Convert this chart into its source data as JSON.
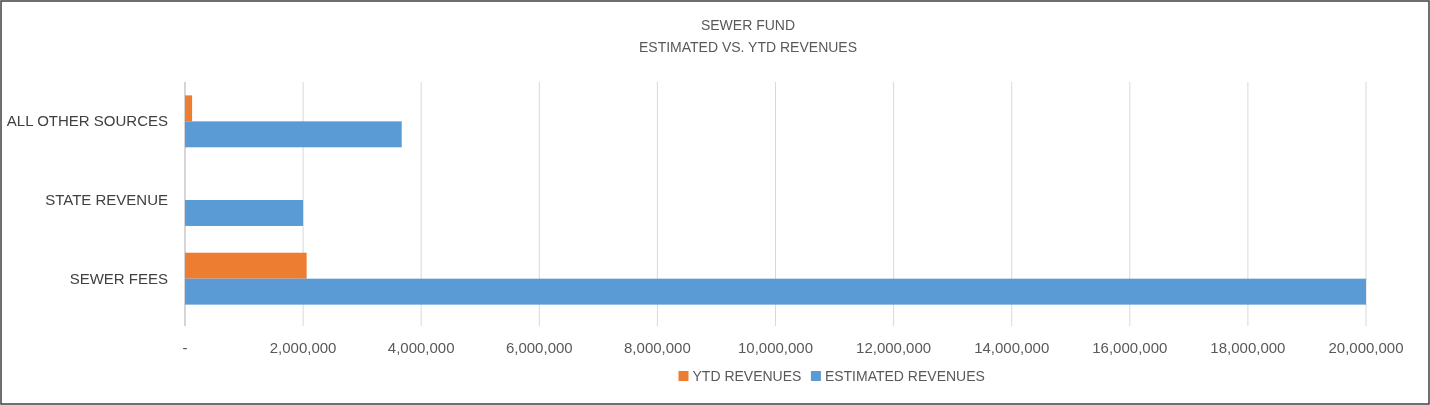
{
  "chart_data": {
    "type": "bar",
    "orientation": "horizontal",
    "title": "SEWER FUND",
    "subtitle": "ESTIMATED VS. YTD REVENUES",
    "categories": [
      "ALL OTHER SOURCES",
      "STATE REVENUE",
      "SEWER FEES"
    ],
    "series": [
      {
        "name": "YTD REVENUES",
        "color": "#ed7d31",
        "values": [
          120000,
          null,
          2060000
        ]
      },
      {
        "name": "ESTIMATED REVENUES",
        "color": "#5b9bd5",
        "values": [
          3670000,
          2000000,
          20000000
        ]
      }
    ],
    "xlim": [
      0,
      20000000
    ],
    "xticks": [
      {
        "value": 0,
        "label": "-"
      },
      {
        "value": 2000000,
        "label": "2,000,000"
      },
      {
        "value": 4000000,
        "label": "4,000,000"
      },
      {
        "value": 6000000,
        "label": "6,000,000"
      },
      {
        "value": 8000000,
        "label": "8,000,000"
      },
      {
        "value": 10000000,
        "label": "10,000,000"
      },
      {
        "value": 12000000,
        "label": "12,000,000"
      },
      {
        "value": 14000000,
        "label": "14,000,000"
      },
      {
        "value": 16000000,
        "label": "16,000,000"
      },
      {
        "value": 18000000,
        "label": "18,000,000"
      },
      {
        "value": 20000000,
        "label": "20,000,000"
      }
    ],
    "grid": "x",
    "legend": "bottom"
  }
}
